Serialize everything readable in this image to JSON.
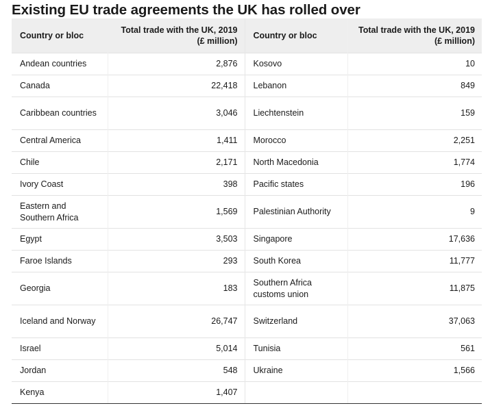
{
  "title": "Existing EU trade agreements the UK has rolled over",
  "table": {
    "headers": [
      "Country or bloc",
      "Total trade with the UK, 2019 (£ million)",
      "Country or bloc",
      "Total trade with the UK, 2019 (£ million)"
    ],
    "rows": [
      [
        "Andean countries",
        "2,876",
        "Kosovo",
        "10"
      ],
      [
        "Canada",
        "22,418",
        "Lebanon",
        "849"
      ],
      [
        "Caribbean countries",
        "3,046",
        "Liechtenstein",
        "159"
      ],
      [
        "Central America",
        "1,411",
        "Morocco",
        "2,251"
      ],
      [
        "Chile",
        "2,171",
        "North Macedonia",
        "1,774"
      ],
      [
        "Ivory Coast",
        "398",
        "Pacific states",
        "196"
      ],
      [
        "Eastern and Southern Africa",
        "1,569",
        "Palestinian Authority",
        "9"
      ],
      [
        "Egypt",
        "3,503",
        "Singapore",
        "17,636"
      ],
      [
        "Faroe Islands",
        "293",
        "South Korea",
        "11,777"
      ],
      [
        "Georgia",
        "183",
        "Southern Africa customs union",
        "11,875"
      ],
      [
        "Iceland and Norway",
        "26,747",
        "Switzerland",
        "37,063"
      ],
      [
        "Israel",
        "5,014",
        "Tunisia",
        "561"
      ],
      [
        "Jordan",
        "548",
        "Ukraine",
        "1,566"
      ],
      [
        "Kenya",
        "1,407",
        "",
        ""
      ]
    ]
  }
}
